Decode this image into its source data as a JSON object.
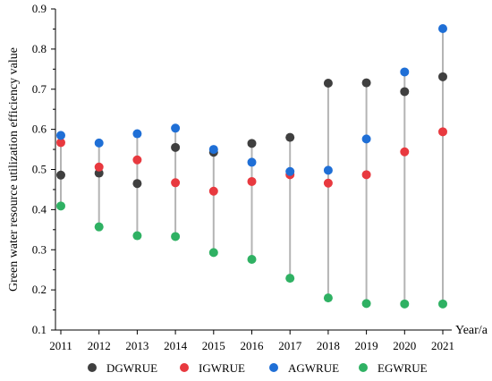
{
  "chart_data": {
    "type": "scatter",
    "title": "",
    "xlabel": "Year/a",
    "ylabel": "Green water resource utilization efficiency value",
    "categories": [
      "2011",
      "2012",
      "2013",
      "2014",
      "2015",
      "2016",
      "2017",
      "2018",
      "2019",
      "2020",
      "2021"
    ],
    "ylim": [
      0.1,
      0.9
    ],
    "yticks": [
      "0.1",
      "0.2",
      "0.3",
      "0.4",
      "0.5",
      "0.6",
      "0.7",
      "0.8",
      "0.9"
    ],
    "grid": false,
    "legend_position": "bottom",
    "series": [
      {
        "name": "DGWRUE",
        "color": "#3f3f3f",
        "values": [
          0.486,
          0.491,
          0.465,
          0.555,
          0.543,
          0.565,
          0.58,
          0.715,
          0.716,
          0.694,
          0.731
        ]
      },
      {
        "name": "IGWRUE",
        "color": "#e8393f",
        "values": [
          0.567,
          0.506,
          0.524,
          0.467,
          0.446,
          0.47,
          0.487,
          0.466,
          0.487,
          0.544,
          0.594
        ]
      },
      {
        "name": "AGWRUE",
        "color": "#1f6fd6",
        "values": [
          0.585,
          0.566,
          0.589,
          0.603,
          0.55,
          0.518,
          0.495,
          0.498,
          0.576,
          0.743,
          0.851
        ]
      },
      {
        "name": "EGWRUE",
        "color": "#2fb163",
        "values": [
          0.409,
          0.357,
          0.335,
          0.333,
          0.293,
          0.276,
          0.229,
          0.18,
          0.166,
          0.165,
          0.165
        ]
      }
    ],
    "range_lines": "min-to-max vertical line per year"
  }
}
